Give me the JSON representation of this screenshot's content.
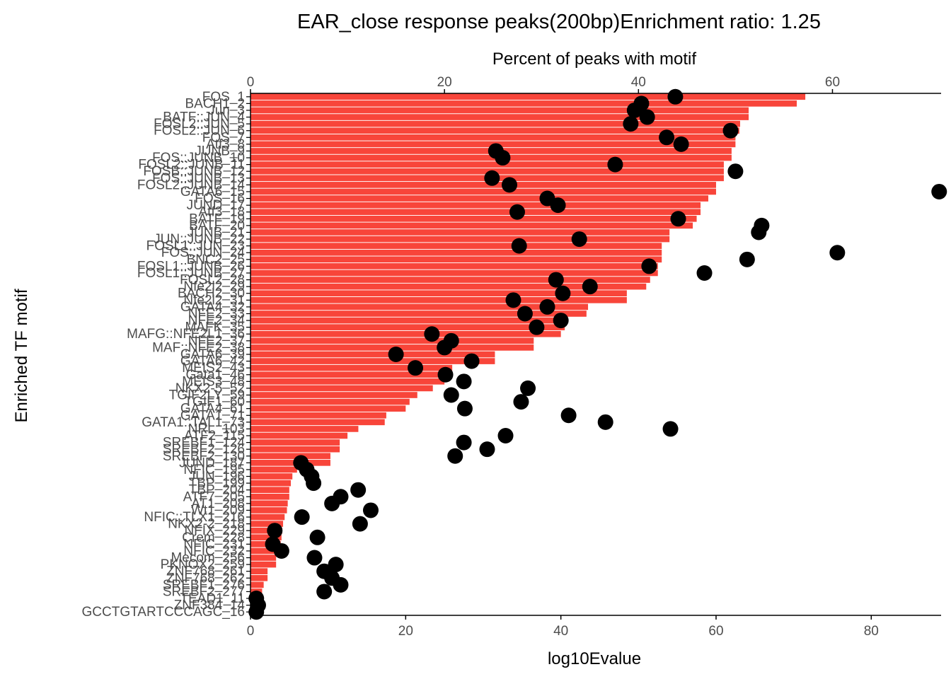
{
  "chart_data": {
    "type": "bar",
    "title": "EAR_close response peaks(200bp)Enrichment ratio: 1.25",
    "xlabel": "log10Evalue",
    "ylabel": "Enriched TF motif",
    "secondary_xlabel": "Percent of peaks with motif",
    "xlim": [
      0,
      89
    ],
    "x_ticks": [
      0,
      20,
      40,
      60,
      80
    ],
    "secondary_xlim": [
      0,
      71.2
    ],
    "secondary_x_ticks": [
      0,
      20,
      40,
      60
    ],
    "bar_color": "#f8453a",
    "point_color": "#000000",
    "categories": [
      "FOS_1",
      "BACH1_2",
      "Jun_3",
      "BATF::JUN_4",
      "FOSL2::JUN_5",
      "FOSL2::JUN_6",
      "FOS_7",
      "Atf3_8",
      "JUNB_9",
      "FOS::JUNB_10",
      "FOSL2::JUNB_11",
      "FOSB::JUNB_12",
      "FOS::JUNB_13",
      "FOSL2::JUNB_14",
      "GATA6_15",
      "FOS_16",
      "JUND_17",
      "Atf3_18",
      "BATF_19",
      "BATF_20",
      "JUNB_21",
      "JUN::JUNB_22",
      "FOSL1::JUN_23",
      "FOS::JUN_24",
      "BNC2_25",
      "FOSL1::JUNB_26",
      "FOSL1::JUNB_27",
      "FOSL2_28",
      "Nfe2l2_29",
      "BACH2_30",
      "Nfe2l2_31",
      "GATA4_32",
      "NFE2_33",
      "NFE2_34",
      "MAFK_35",
      "MAFG::NFE2L1_36",
      "NFE2_37",
      "MAF::NFE2_38",
      "GATA6_39",
      "GATA6_42",
      "MEIS2_43",
      "Gata1_46",
      "MEIS3_48",
      "NKX2-5_52",
      "TGIF2LY_59",
      "TGIF1_60",
      "GATA4_61",
      "GATA1_71",
      "GATA1::TAL1_73",
      "NRL_103",
      "ATF2_115",
      "SREBF1_124",
      "SREBF2_126",
      "SREBF2_130",
      "JUND_187",
      "NFIC_195",
      "JUN_196",
      "TBP_199",
      "TBP_204",
      "ATF7_205",
      "AT1_208",
      "Wt1_209",
      "NFIC::TLX1_216",
      "NKX2-2_218",
      "NFIX_229",
      "Crem_228",
      "NFIC_231",
      "NFIC_232",
      "Mecom_256",
      "PKNOX2_259",
      "ZNF768_261",
      "ZNF768_262",
      "SREBF1_276",
      "SREBF2_277",
      "TEAD1_11",
      "ZNF384_14",
      "GCCTGTARTCCCAGC_16"
    ],
    "values": [
      71.5,
      70.4,
      64.2,
      64.2,
      63.1,
      63.0,
      62.5,
      62.5,
      62.0,
      62.0,
      61.0,
      61.0,
      61.0,
      60.0,
      60.0,
      59.0,
      58.0,
      58.0,
      57.5,
      57.0,
      54.0,
      54.0,
      53.0,
      53.0,
      53.0,
      52.5,
      52.5,
      51.5,
      51.0,
      48.5,
      48.5,
      43.5,
      43.3,
      40.5,
      40.5,
      40.0,
      36.5,
      36.5,
      31.5,
      31.5,
      26.0,
      25.5,
      25.0,
      23.5,
      21.5,
      20.5,
      20.0,
      17.5,
      17.3,
      13.9,
      12.5,
      11.5,
      11.5,
      10.3,
      10.3,
      6.0,
      5.4,
      5.2,
      5.0,
      5.0,
      4.8,
      4.7,
      4.4,
      4.2,
      4.1,
      4.0,
      3.9,
      3.5,
      3.3,
      3.3,
      2.2,
      2.2,
      1.7,
      1.5,
      1.2,
      0.6,
      0.3
    ],
    "percent_values": [
      43.8,
      40.3,
      39.6,
      40.9,
      39.2,
      49.5,
      42.9,
      44.4,
      25.3,
      26.0,
      37.6,
      50.0,
      24.9,
      26.7,
      71.0,
      30.6,
      31.7,
      27.5,
      44.1,
      52.7,
      52.4,
      33.9,
      27.7,
      60.5,
      51.2,
      41.1,
      46.8,
      31.5,
      35.0,
      32.2,
      27.1,
      30.6,
      28.3,
      32.0,
      29.5,
      18.7,
      20.7,
      20.0,
      15.0,
      22.8,
      17.0,
      20.1,
      22.0,
      28.6,
      20.7,
      27.9,
      22.1,
      32.8,
      36.6,
      43.3,
      26.3,
      22.0,
      24.4,
      21.1,
      5.2,
      5.8,
      6.3,
      6.5,
      11.1,
      9.3,
      8.4,
      12.4,
      5.3,
      11.3,
      2.5,
      6.9,
      2.3,
      3.2,
      6.6,
      8.8,
      7.6,
      8.4,
      9.3,
      7.6,
      0.6,
      0.8,
      0.6
    ]
  }
}
